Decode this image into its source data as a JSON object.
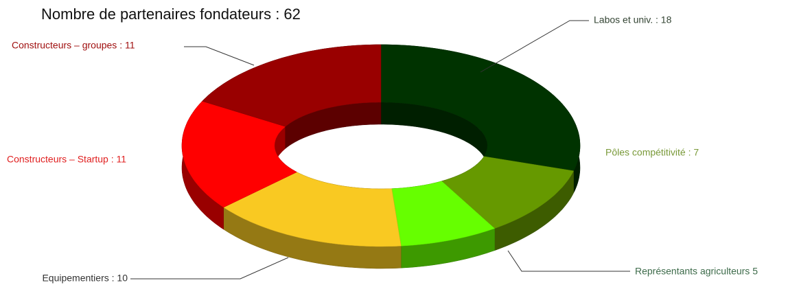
{
  "chart_data": {
    "type": "donut3d",
    "title": "Nombre de partenaires fondateurs : 62",
    "values": [
      18,
      7,
      5,
      10,
      11,
      11
    ],
    "value_labels": [
      "Labos et univ. : 18",
      "Pôles compétitivité : 7",
      "Représentants agriculteurs 5",
      "Equipementiers : 10",
      "Constructeurs – Startup : 11",
      "Constructeurs – groupes : 11"
    ],
    "colors": [
      "#003300",
      "#669900",
      "#66ff00",
      "#f9c922",
      "#ff0000",
      "#990000"
    ],
    "label_colors": [
      "#334433",
      "#7a9a3a",
      "#3d6b4a",
      "#333333",
      "#e02020",
      "#a01010"
    ]
  }
}
